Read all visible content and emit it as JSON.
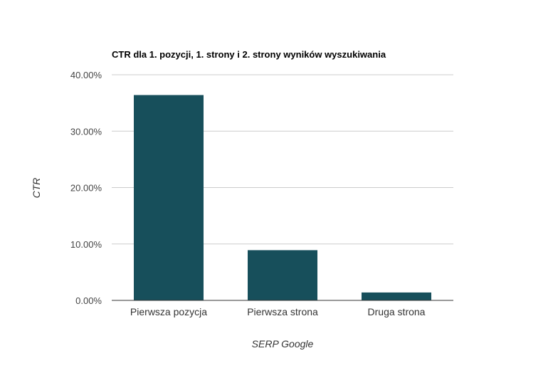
{
  "chart_data": {
    "type": "bar",
    "title": "CTR dla 1. pozycji, 1. strony i 2. strony wyników wyszukiwania",
    "xlabel": "SERP Google",
    "ylabel": "CTR",
    "categories": [
      "Pierwsza pozycja",
      "Pierwsza strona",
      "Druga strona"
    ],
    "values": [
      36.4,
      8.9,
      1.4
    ],
    "ylim": [
      0,
      40
    ],
    "yticks": [
      "0.00%",
      "10.00%",
      "20.00%",
      "30.00%",
      "40.00%"
    ],
    "grid": true,
    "legend": "none",
    "colors": {
      "bar": "#174f5b",
      "grid": "#cccccc",
      "axis": "#333333",
      "title": "#000000",
      "tick_label": "#444444",
      "axis_label": "#333333"
    }
  }
}
